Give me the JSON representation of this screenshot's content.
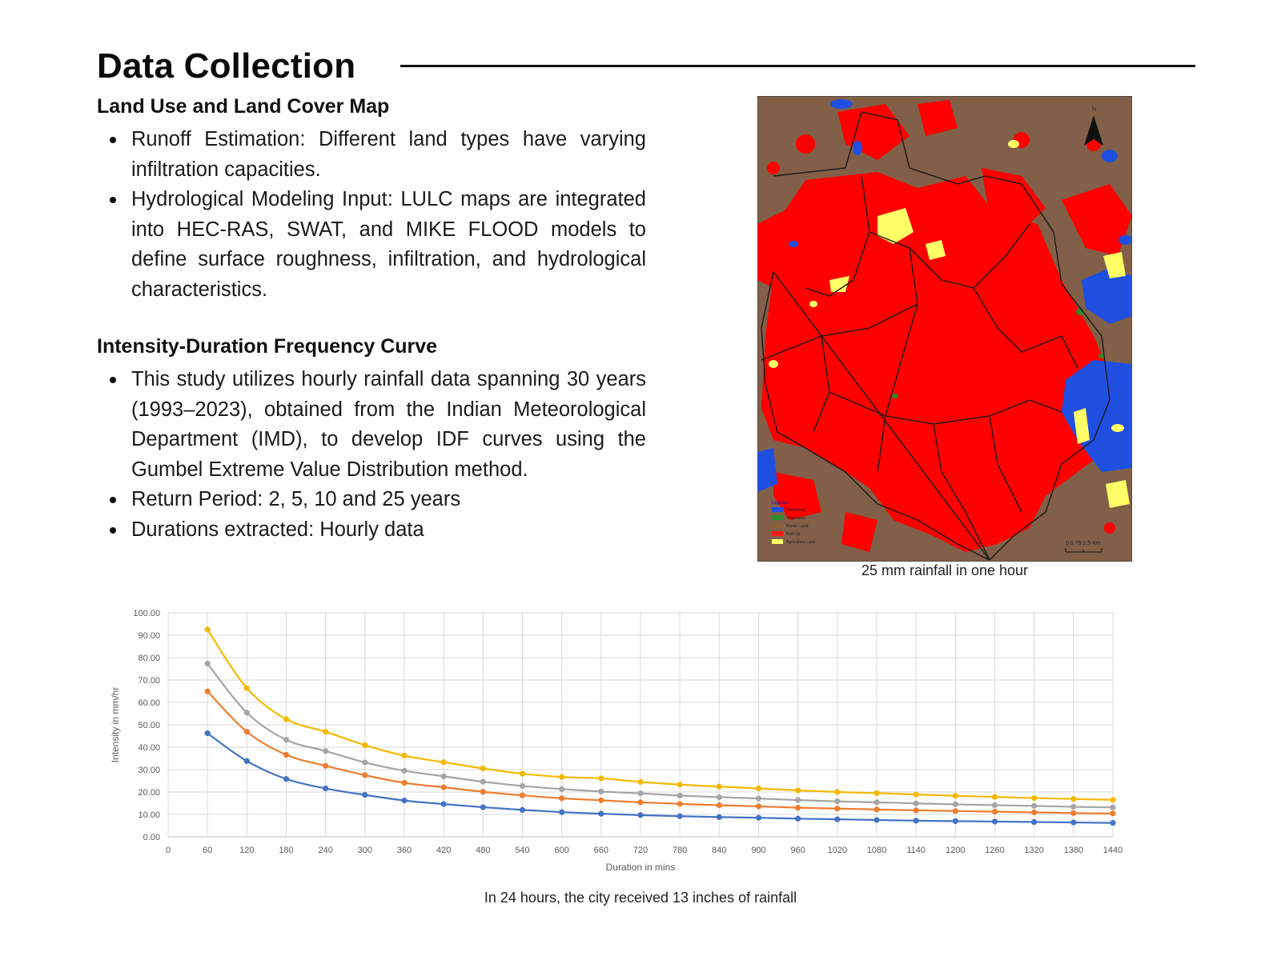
{
  "page": {
    "title": "Data Collection"
  },
  "lulc": {
    "heading": "Land Use and Land Cover Map",
    "bullets": [
      "Runoff Estimation: Different land types have varying infiltration capacities.",
      "Hydrological Modeling Input: LULC maps are integrated into HEC-RAS, SWAT, and MIKE FLOOD models to define surface roughness, infiltration, and hydrological characteristics."
    ]
  },
  "idf": {
    "heading": "Intensity-Duration Frequency Curve",
    "bullets": [
      "This study utilizes hourly rainfall data spanning 30 years (1993–2023), obtained from the Indian Meteorological Department (IMD), to develop IDF curves using the Gumbel Extreme Value Distribution method.",
      "Return Period: 2, 5, 10 and 25 years",
      "Durations extracted: Hourly data"
    ]
  },
  "map": {
    "caption": "25 mm rainfall in one hour",
    "north_label": "N",
    "legend": {
      "title": "Legends",
      "items": [
        {
          "label": "Waterbody",
          "color": "#1f4fe0"
        },
        {
          "label": "Vegetation",
          "color": "#2e8b2e"
        },
        {
          "label": "Barren Land",
          "color": "#8b5e3c"
        },
        {
          "label": "Built Up",
          "color": "#ff1a1a"
        },
        {
          "label": "Agriculture Land",
          "color": "#ffff66"
        }
      ]
    },
    "scale_label": "0 0.75 1.5 Km",
    "colors": {
      "barren": "#825f48",
      "built_up": "#ff0000",
      "water": "#1f4fe0",
      "agriculture": "#ffff66",
      "vegetation": "#2e8b2e"
    }
  },
  "chart_caption": "In 24 hours, the city received 13 inches of rainfall",
  "chart_data": {
    "type": "line",
    "xlabel": "Duration in mins",
    "ylabel": "Intensity in mm/hr",
    "x_ticks": [
      0,
      60,
      120,
      180,
      240,
      300,
      360,
      420,
      480,
      540,
      600,
      660,
      720,
      780,
      840,
      900,
      960,
      1020,
      1080,
      1140,
      1200,
      1260,
      1320,
      1380,
      1440
    ],
    "y_ticks": [
      "0.00",
      "10.00",
      "20.00",
      "30.00",
      "40.00",
      "50.00",
      "60.00",
      "70.00",
      "80.00",
      "90.00",
      "100.00"
    ],
    "xlim": [
      0,
      1440
    ],
    "ylim": [
      0,
      100
    ],
    "grid": true,
    "x": [
      60,
      120,
      180,
      240,
      300,
      360,
      420,
      480,
      540,
      600,
      660,
      720,
      780,
      840,
      900,
      960,
      1020,
      1080,
      1140,
      1200,
      1260,
      1320,
      1380,
      1440
    ],
    "series": [
      {
        "color": "#4472c4",
        "values": [
          46.2,
          33.8,
          25.8,
          21.6,
          18.7,
          16.2,
          14.6,
          13.2,
          12.0,
          11.0,
          10.3,
          9.7,
          9.2,
          8.8,
          8.5,
          8.1,
          7.8,
          7.5,
          7.2,
          7.0,
          6.8,
          6.6,
          6.4,
          6.2
        ]
      },
      {
        "color": "#ed7d31",
        "values": [
          64.9,
          46.9,
          36.6,
          31.7,
          27.5,
          24.1,
          22.1,
          20.1,
          18.5,
          17.2,
          16.3,
          15.4,
          14.7,
          14.1,
          13.6,
          13.0,
          12.6,
          12.2,
          11.8,
          11.5,
          11.2,
          10.9,
          10.6,
          10.4
        ]
      },
      {
        "color": "#a5a5a5",
        "values": [
          77.3,
          55.4,
          43.3,
          38.3,
          33.2,
          29.5,
          27.0,
          24.6,
          22.7,
          21.3,
          20.2,
          19.4,
          18.4,
          17.7,
          17.1,
          16.4,
          15.8,
          15.4,
          14.9,
          14.5,
          14.1,
          13.8,
          13.4,
          13.1
        ]
      },
      {
        "color": "#f5b800",
        "values": [
          92.5,
          66.4,
          52.5,
          46.9,
          40.9,
          36.2,
          33.3,
          30.5,
          28.2,
          26.7,
          26.1,
          24.5,
          23.3,
          22.4,
          21.6,
          20.7,
          20.0,
          19.5,
          18.9,
          18.3,
          17.8,
          17.3,
          16.9,
          16.5
        ]
      }
    ]
  }
}
